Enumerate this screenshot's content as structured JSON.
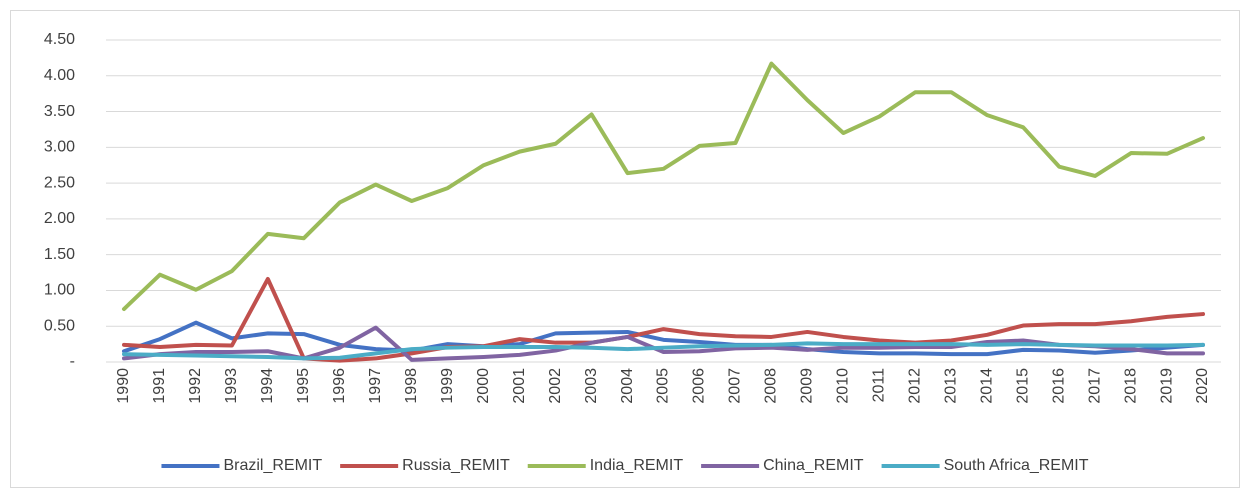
{
  "chart_data": {
    "type": "line",
    "categories": [
      "1990",
      "1991",
      "1992",
      "1993",
      "1994",
      "1995",
      "1996",
      "1997",
      "1998",
      "1999",
      "2000",
      "2001",
      "2002",
      "2003",
      "2004",
      "2005",
      "2006",
      "2007",
      "2008",
      "2009",
      "2010",
      "2011",
      "2012",
      "2013",
      "2014",
      "2015",
      "2016",
      "2017",
      "2018",
      "2019",
      "2020"
    ],
    "series": [
      {
        "name": "Brazil_REMIT",
        "color": "#4472c4",
        "values": [
          0.15,
          0.32,
          0.55,
          0.33,
          0.4,
          0.39,
          0.24,
          0.18,
          0.16,
          0.25,
          0.22,
          0.25,
          0.4,
          0.41,
          0.42,
          0.31,
          0.28,
          0.24,
          0.24,
          0.18,
          0.14,
          0.12,
          0.12,
          0.11,
          0.11,
          0.17,
          0.16,
          0.13,
          0.16,
          0.2,
          0.24
        ]
      },
      {
        "name": "Russia_REMIT",
        "color": "#c0504d",
        "values": [
          0.24,
          0.21,
          0.24,
          0.23,
          1.16,
          0.05,
          0.02,
          0.05,
          0.12,
          0.21,
          0.22,
          0.32,
          0.27,
          0.27,
          0.35,
          0.46,
          0.39,
          0.36,
          0.35,
          0.42,
          0.35,
          0.3,
          0.27,
          0.3,
          0.38,
          0.51,
          0.53,
          0.53,
          0.57,
          0.63,
          0.67
        ]
      },
      {
        "name": "India_REMIT",
        "color": "#9bbb59",
        "values": [
          0.74,
          1.22,
          1.01,
          1.27,
          1.79,
          1.73,
          2.23,
          2.48,
          2.25,
          2.43,
          2.75,
          2.94,
          3.05,
          3.46,
          2.64,
          2.7,
          3.02,
          3.06,
          4.17,
          3.66,
          3.2,
          3.43,
          3.77,
          3.77,
          3.45,
          3.28,
          2.73,
          2.6,
          2.92,
          2.91,
          3.13
        ]
      },
      {
        "name": "China_REMIT",
        "color": "#8064a2",
        "values": [
          0.05,
          0.11,
          0.14,
          0.14,
          0.15,
          0.05,
          0.2,
          0.48,
          0.03,
          0.05,
          0.07,
          0.1,
          0.16,
          0.27,
          0.35,
          0.14,
          0.15,
          0.19,
          0.2,
          0.17,
          0.2,
          0.2,
          0.21,
          0.21,
          0.28,
          0.3,
          0.24,
          0.22,
          0.18,
          0.12,
          0.12
        ]
      },
      {
        "name": "South Africa_REMIT",
        "color": "#4bacc6",
        "values": [
          0.11,
          0.1,
          0.09,
          0.08,
          0.07,
          0.05,
          0.06,
          0.12,
          0.18,
          0.2,
          0.21,
          0.21,
          0.21,
          0.2,
          0.18,
          0.2,
          0.22,
          0.23,
          0.24,
          0.26,
          0.25,
          0.25,
          0.25,
          0.25,
          0.24,
          0.25,
          0.24,
          0.23,
          0.23,
          0.23,
          0.24
        ]
      }
    ],
    "ylim": [
      0,
      4.5
    ],
    "yticks": [
      {
        "value": 0,
        "label": "-"
      },
      {
        "value": 0.5,
        "label": "0.50"
      },
      {
        "value": 1,
        "label": "1.00"
      },
      {
        "value": 1.5,
        "label": "1.50"
      },
      {
        "value": 2,
        "label": "2.00"
      },
      {
        "value": 2.5,
        "label": "2.50"
      },
      {
        "value": 3,
        "label": "3.00"
      },
      {
        "value": 3.5,
        "label": "3.50"
      },
      {
        "value": 4,
        "label": "4.00"
      },
      {
        "value": 4.5,
        "label": "4.50"
      }
    ],
    "grid": true,
    "legend": "bottom"
  }
}
